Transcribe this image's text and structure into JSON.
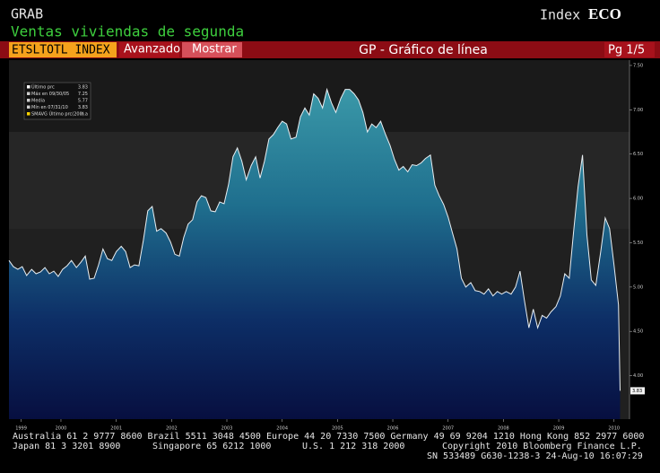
{
  "header": {
    "function": "GRAB",
    "security_type": "Index",
    "sector": "ECO",
    "description": "Ventas viviendas de segunda",
    "ticker": "ETSLTOTL INDEX",
    "button_advanced": "Avanzado",
    "button_show": "Mostrar",
    "screen_title": "GP - Gráfico de línea",
    "page": "Pg 1/5"
  },
  "chart_data": {
    "type": "area",
    "xlim": [
      1999.56,
      2010.78
    ],
    "ylim": [
      3.51,
      7.56
    ],
    "xticks": [
      {
        "value": 1999.78,
        "label": "1999"
      },
      {
        "value": 2000.5,
        "label": "2000"
      },
      {
        "value": 2001.5,
        "label": "2001"
      },
      {
        "value": 2002.5,
        "label": "2002"
      },
      {
        "value": 2003.5,
        "label": "2003"
      },
      {
        "value": 2004.5,
        "label": "2004"
      },
      {
        "value": 2005.5,
        "label": "2005"
      },
      {
        "value": 2006.5,
        "label": "2006"
      },
      {
        "value": 2007.5,
        "label": "2007"
      },
      {
        "value": 2008.5,
        "label": "2008"
      },
      {
        "value": 2009.5,
        "label": "2009"
      },
      {
        "value": 2010.5,
        "label": "2010"
      }
    ],
    "yticks": [
      {
        "value": 4,
        "label": "4.00"
      },
      {
        "value": 4.5,
        "label": "4.50"
      },
      {
        "value": 5,
        "label": "5.00"
      },
      {
        "value": 5.5,
        "label": "5.50"
      },
      {
        "value": 6,
        "label": "6.00"
      },
      {
        "value": 6.5,
        "label": "6.50"
      },
      {
        "value": 7,
        "label": "7.00"
      },
      {
        "value": 7.5,
        "label": "7.50"
      }
    ],
    "grid": false,
    "legend": [
      {
        "label": "Último prc",
        "value": 3.83
      },
      {
        "label": "Máx en 09/30/05",
        "value": 7.25
      },
      {
        "label": "Media",
        "value": 5.77
      },
      {
        "label": "Mín en 07/31/10",
        "value": 3.83
      },
      {
        "label": "SMAVG Último prc(200)",
        "value": "n.a"
      }
    ],
    "series": [
      {
        "color": "#e8eef2",
        "x": [
          1999.56,
          1999.64,
          1999.72,
          1999.8,
          1999.88,
          1999.97,
          2000.05,
          2000.13,
          2000.21,
          2000.29,
          2000.37,
          2000.45,
          2000.53,
          2000.61,
          2000.69,
          2000.78,
          2000.86,
          2000.94,
          2001.02,
          2001.1,
          2001.18,
          2001.26,
          2001.34,
          2001.42,
          2001.5,
          2001.59,
          2001.67,
          2001.75,
          2001.83,
          2001.91,
          2001.99,
          2002.07,
          2002.15,
          2002.23,
          2002.31,
          2002.4,
          2002.48,
          2002.56,
          2002.64,
          2002.72,
          2002.8,
          2002.88,
          2002.96,
          2003.04,
          2003.12,
          2003.21,
          2003.29,
          2003.37,
          2003.45,
          2003.53,
          2003.61,
          2003.69,
          2003.77,
          2003.85,
          2003.94,
          2004.02,
          2004.1,
          2004.18,
          2004.26,
          2004.34,
          2004.42,
          2004.5,
          2004.58,
          2004.66,
          2004.75,
          2004.83,
          2004.91,
          2004.99,
          2005.07,
          2005.15,
          2005.23,
          2005.31,
          2005.39,
          2005.47,
          2005.56,
          2005.64,
          2005.72,
          2005.8,
          2005.88,
          2005.96,
          2006.04,
          2006.12,
          2006.2,
          2006.28,
          2006.37,
          2006.45,
          2006.53,
          2006.61,
          2006.69,
          2006.77,
          2006.85,
          2006.93,
          2007.01,
          2007.09,
          2007.18,
          2007.26,
          2007.34,
          2007.42,
          2007.5,
          2007.58,
          2007.66,
          2007.74,
          2007.82,
          2007.91,
          2007.99,
          2008.07,
          2008.15,
          2008.23,
          2008.31,
          2008.39,
          2008.47,
          2008.55,
          2008.64,
          2008.72,
          2008.8,
          2008.88,
          2008.96,
          2009.04,
          2009.12,
          2009.2,
          2009.28,
          2009.36,
          2009.45,
          2009.53,
          2009.61,
          2009.69,
          2009.77,
          2009.85,
          2009.93,
          2010.01,
          2010.09,
          2010.17,
          2010.26,
          2010.34,
          2010.42,
          2010.5,
          2010.58,
          2010.61
        ],
        "values": [
          5.3,
          5.23,
          5.2,
          5.23,
          5.13,
          5.2,
          5.15,
          5.17,
          5.22,
          5.15,
          5.18,
          5.12,
          5.2,
          5.24,
          5.3,
          5.22,
          5.28,
          5.35,
          5.09,
          5.1,
          5.25,
          5.43,
          5.32,
          5.3,
          5.4,
          5.46,
          5.4,
          5.22,
          5.25,
          5.24,
          5.53,
          5.86,
          5.91,
          5.63,
          5.66,
          5.61,
          5.51,
          5.37,
          5.35,
          5.56,
          5.71,
          5.76,
          5.96,
          6.03,
          6.01,
          5.86,
          5.85,
          5.96,
          5.94,
          6.16,
          6.47,
          6.57,
          6.42,
          6.21,
          6.37,
          6.47,
          6.23,
          6.42,
          6.67,
          6.72,
          6.8,
          6.87,
          6.84,
          6.67,
          6.69,
          6.92,
          7.02,
          6.94,
          7.18,
          7.13,
          7.02,
          7.23,
          7.08,
          6.97,
          7.13,
          7.23,
          7.23,
          7.18,
          7.11,
          6.97,
          6.75,
          6.84,
          6.8,
          6.87,
          6.72,
          6.6,
          6.44,
          6.32,
          6.36,
          6.3,
          6.38,
          6.37,
          6.4,
          6.45,
          6.49,
          6.15,
          6.03,
          5.93,
          5.79,
          5.61,
          5.43,
          5.1,
          5.0,
          5.05,
          4.96,
          4.95,
          4.92,
          4.98,
          4.9,
          4.95,
          4.92,
          4.95,
          4.92,
          5.0,
          5.18,
          4.85,
          4.54,
          4.75,
          4.54,
          4.68,
          4.65,
          4.72,
          4.78,
          4.9,
          5.15,
          5.1,
          5.63,
          6.13,
          6.49,
          5.59,
          5.08,
          5.02,
          5.4,
          5.78,
          5.66,
          5.25,
          4.8,
          3.83
        ]
      }
    ]
  },
  "footer": {
    "line1": "Australia 61 2 9777 8600 Brazil 5511 3048 4500 Europe 44 20 7330 7500 Germany 49 69 9204 1210 Hong Kong 852 2977 6000",
    "japan": "Japan 81 3 3201 8900",
    "singapore": "Singapore 65 6212 1000",
    "us": "U.S. 1 212 318 2000",
    "copyright": "Copyright 2010 Bloomberg Finance L.P.",
    "line3": "SN 533489 G630-1238-3 24-Aug-10 16:07:29"
  }
}
